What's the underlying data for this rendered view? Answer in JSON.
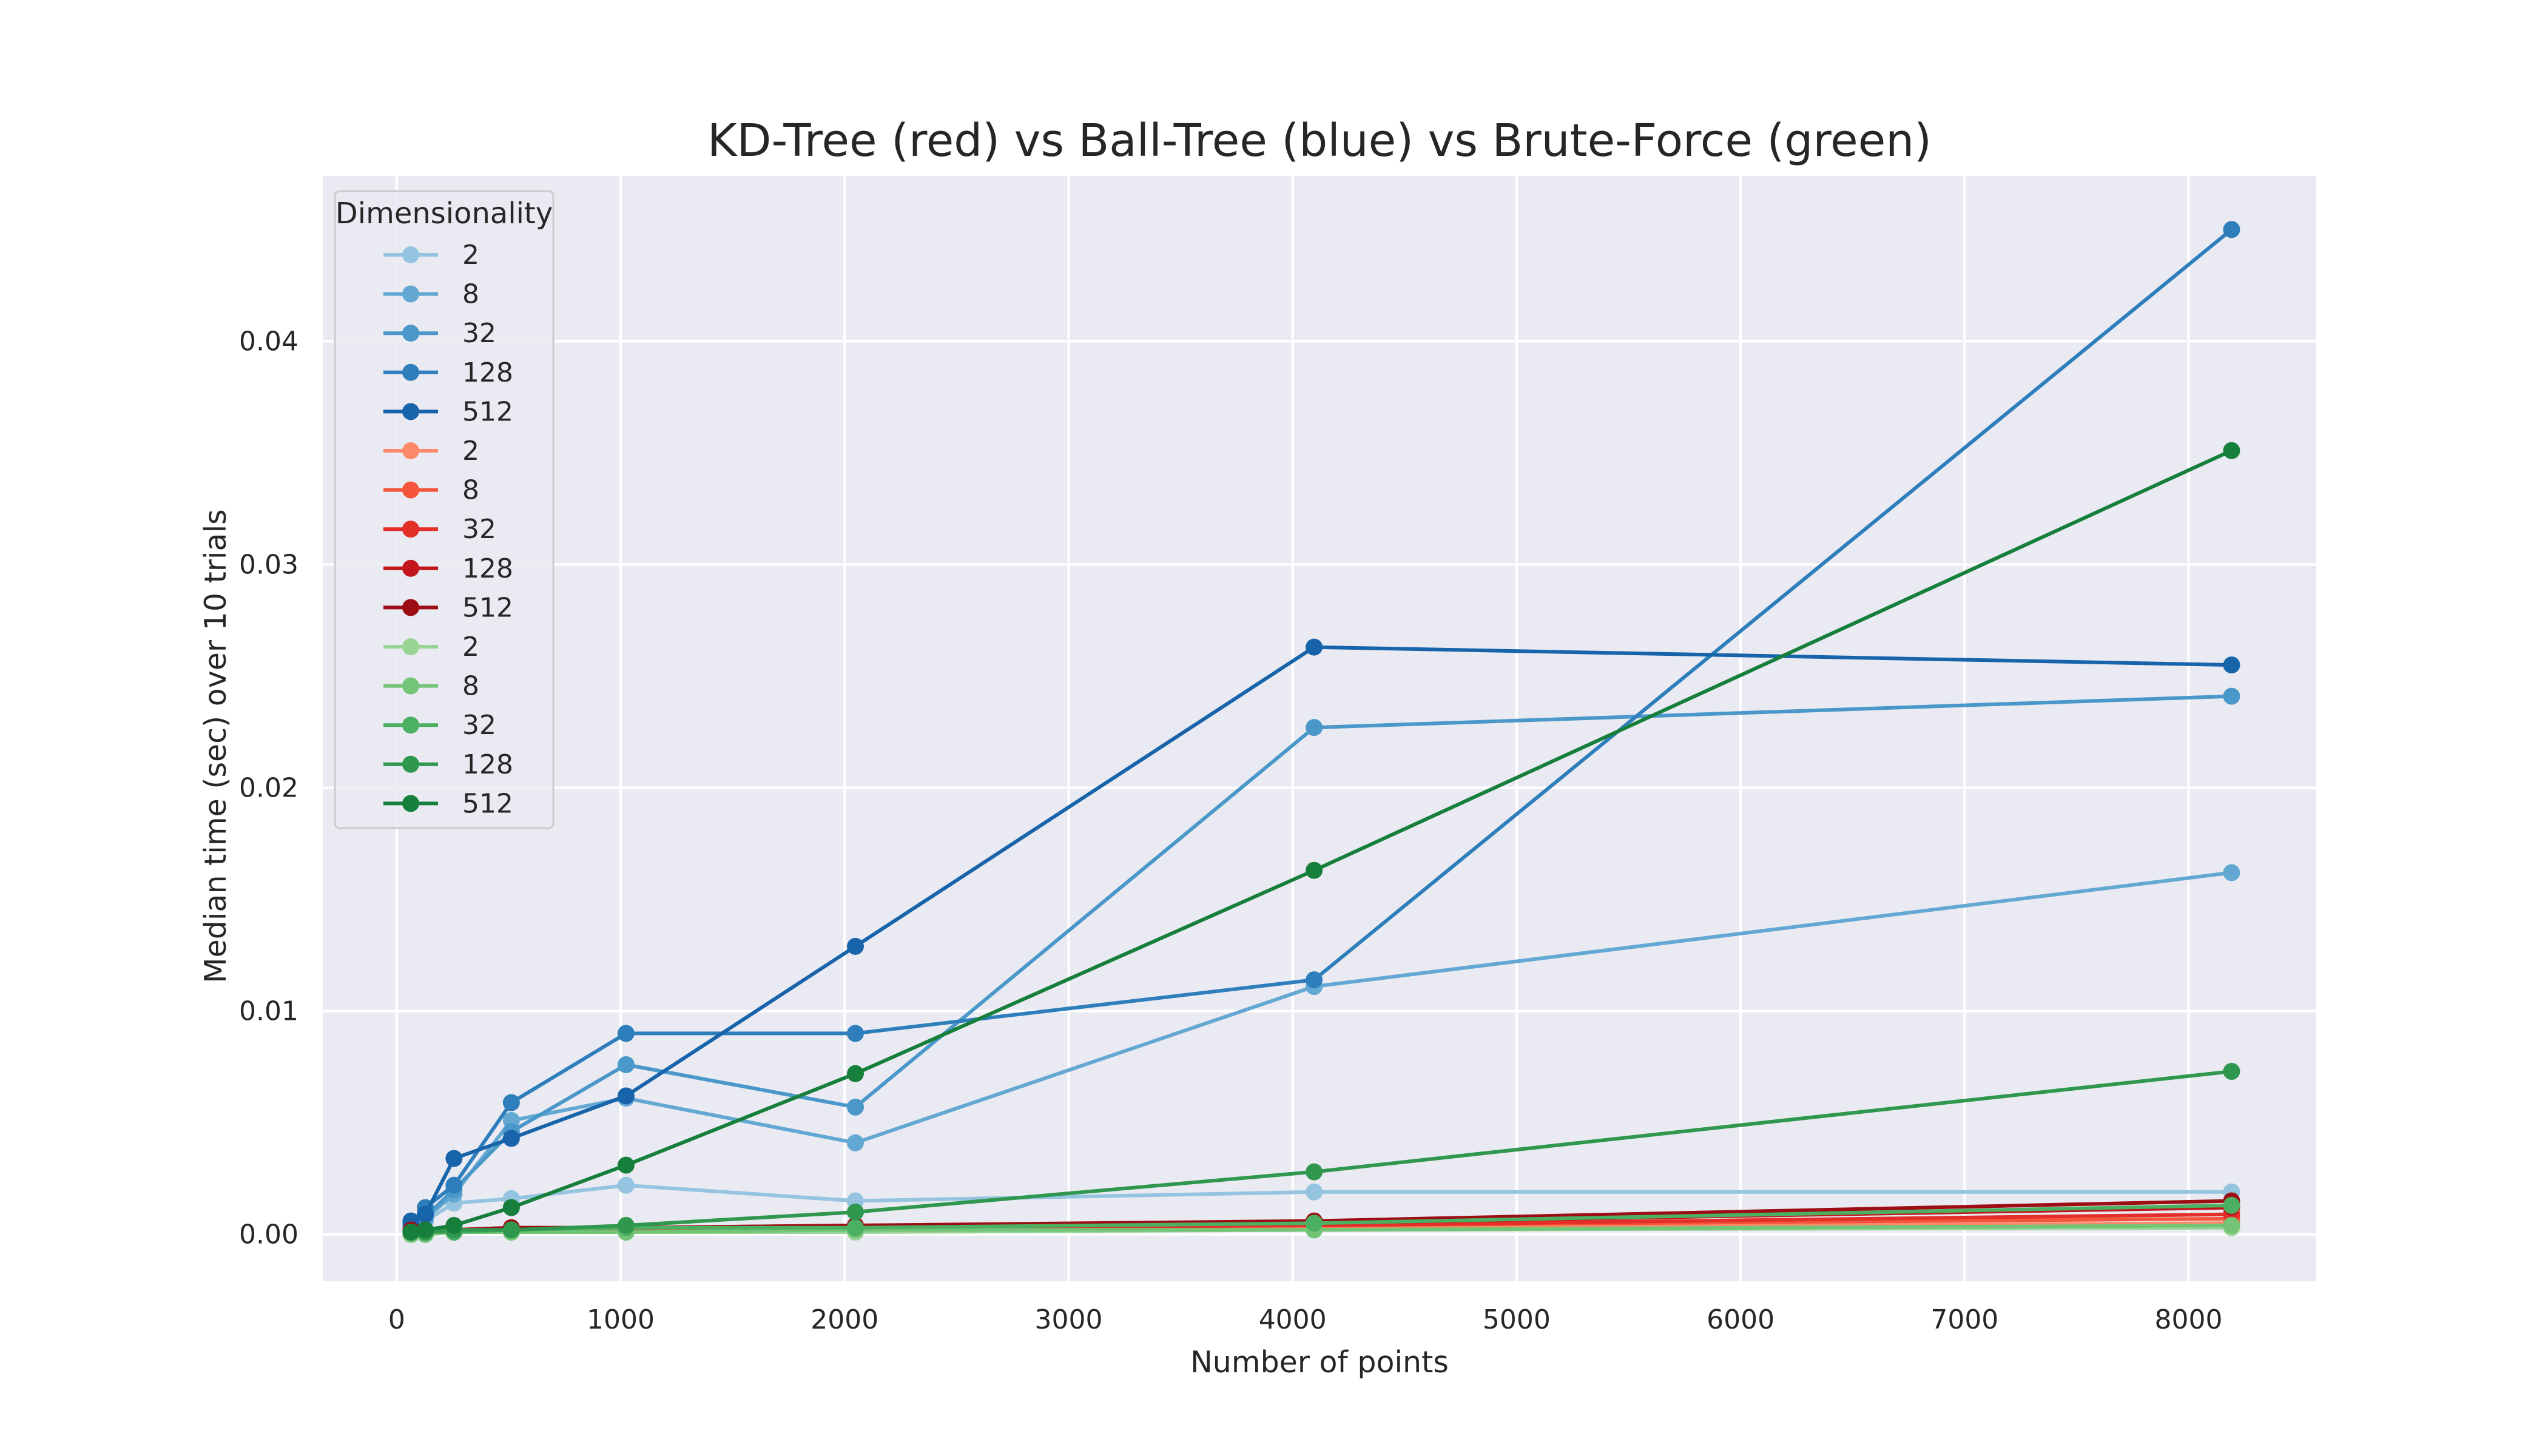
{
  "chart_data": {
    "type": "line",
    "title": "KD-Tree (red) vs Ball-Tree (blue) vs Brute-Force (green)",
    "xlabel": "Number of points",
    "ylabel": "Median time (sec) over 10 trials",
    "xlim": [
      -330,
      8570
    ],
    "ylim": [
      -0.0021,
      0.0474
    ],
    "xticks": [
      0,
      1000,
      2000,
      3000,
      4000,
      5000,
      6000,
      7000,
      8000
    ],
    "yticks": [
      0.0,
      0.01,
      0.02,
      0.03,
      0.04
    ],
    "xtick_labels": [
      "0",
      "1000",
      "2000",
      "3000",
      "4000",
      "5000",
      "6000",
      "7000",
      "8000"
    ],
    "ytick_labels": [
      "0.00",
      "0.01",
      "0.02",
      "0.03",
      "0.04"
    ],
    "grid": true,
    "legend_position": "upper-left",
    "legend_title": "Dimensionality",
    "x": [
      64,
      128,
      256,
      512,
      1024,
      2048,
      4096,
      8192
    ],
    "series": [
      {
        "name": "2",
        "color": "#94c4df",
        "values": [
          0.0003,
          0.0006,
          0.0014,
          0.0016,
          0.0022,
          0.0015,
          0.0019,
          0.0019
        ]
      },
      {
        "name": "8",
        "color": "#63a8d3",
        "values": [
          0.0003,
          0.0007,
          0.0018,
          0.0051,
          0.0061,
          0.0041,
          0.0111,
          0.0162
        ]
      },
      {
        "name": "32",
        "color": "#4a98c9",
        "values": [
          0.0004,
          0.0008,
          0.002,
          0.0046,
          0.0076,
          0.0057,
          0.0227,
          0.0241
        ]
      },
      {
        "name": "128",
        "color": "#2e7ebc",
        "values": [
          0.0005,
          0.0012,
          0.0022,
          0.0059,
          0.009,
          0.009,
          0.0114,
          0.045
        ]
      },
      {
        "name": "512",
        "color": "#1764ab",
        "values": [
          0.0006,
          0.0009,
          0.0034,
          0.0043,
          0.0062,
          0.0129,
          0.0263,
          0.0255
        ]
      },
      {
        "name": "2",
        "color": "#fc8a6a",
        "values": [
          0.0001,
          0.0001,
          0.0001,
          0.0002,
          0.0002,
          0.0002,
          0.0003,
          0.0005
        ]
      },
      {
        "name": "8",
        "color": "#f5553c",
        "values": [
          0.0001,
          0.0001,
          0.0002,
          0.0002,
          0.0002,
          0.0003,
          0.0004,
          0.0007
        ]
      },
      {
        "name": "32",
        "color": "#e32f27",
        "values": [
          0.0001,
          0.0001,
          0.0002,
          0.0002,
          0.0003,
          0.0003,
          0.0004,
          0.0009
        ]
      },
      {
        "name": "128",
        "color": "#c1161b",
        "values": [
          0.0001,
          0.0002,
          0.0002,
          0.0003,
          0.0003,
          0.0004,
          0.0005,
          0.0012
        ]
      },
      {
        "name": "512",
        "color": "#9d0d14",
        "values": [
          0.0002,
          0.0002,
          0.0002,
          0.0003,
          0.0003,
          0.0004,
          0.0006,
          0.0015
        ]
      },
      {
        "name": "2",
        "color": "#98d594",
        "values": [
          0.0,
          0.0,
          0.0001,
          0.0001,
          0.0001,
          0.0001,
          0.0002,
          0.0003
        ]
      },
      {
        "name": "8",
        "color": "#73c476",
        "values": [
          0.0,
          0.0,
          0.0001,
          0.0001,
          0.0001,
          0.0002,
          0.0002,
          0.0004
        ]
      },
      {
        "name": "32",
        "color": "#4bb062",
        "values": [
          0.0001,
          0.0001,
          0.0001,
          0.0002,
          0.0003,
          0.0003,
          0.0005,
          0.0013
        ]
      },
      {
        "name": "128",
        "color": "#2f974e",
        "values": [
          0.0001,
          0.0001,
          0.0002,
          0.0002,
          0.0004,
          0.001,
          0.0028,
          0.0073
        ]
      },
      {
        "name": "512",
        "color": "#157f3b",
        "values": [
          0.0001,
          0.0002,
          0.0004,
          0.0012,
          0.0031,
          0.0072,
          0.0163,
          0.0351
        ]
      }
    ]
  }
}
